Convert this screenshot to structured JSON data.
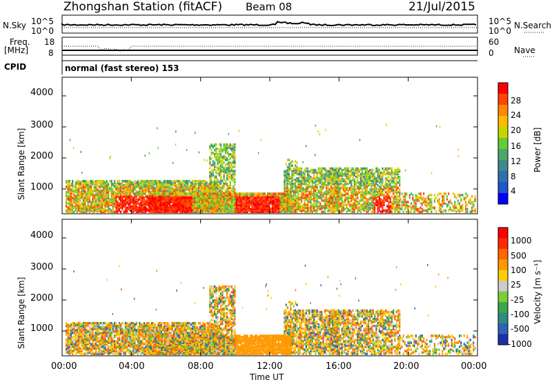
{
  "header": {
    "station": "Zhongshan Station (fitACF)",
    "beam": "Beam 08",
    "date": "21/Jul/2015"
  },
  "top_panels": {
    "nsky_label": "N.Sky",
    "nsky_ticks": [
      "10^5",
      "10^0"
    ],
    "nsearch_label": "N.Search",
    "nsearch_ticks": [
      "10^5",
      "10^0"
    ],
    "freq_label": "Freq.",
    "freq_unit": "[MHz]",
    "freq_ticks": [
      "18",
      "8"
    ],
    "nave_label": "Nave",
    "nave_ticks": [
      "60",
      "0"
    ],
    "cpid_label": "CPID",
    "cpid_text": "normal (fast stereo) 153"
  },
  "chart_data": [
    {
      "type": "heatmap",
      "name": "power-panel",
      "xlabel": "",
      "ylabel": "Slant Range [km]",
      "ylim": [
        200,
        4600
      ],
      "yticks": [
        "4000",
        "3000",
        "2000",
        "1000"
      ],
      "colorbar_label": "Power [dB]",
      "colorbar_ticks": [
        "28",
        "24",
        "20",
        "16",
        "12",
        "8",
        "4"
      ],
      "colors": [
        "#0000ff",
        "#2255cc",
        "#2e6fb0",
        "#3c8a8a",
        "#4aa86a",
        "#66cc33",
        "#c8d400",
        "#ffbb00",
        "#ff8800",
        "#ff4400",
        "#ff0000"
      ],
      "xlim": [
        0,
        24
      ]
    },
    {
      "type": "heatmap",
      "name": "velocity-panel",
      "xlabel": "Time UT",
      "ylabel": "Slant Range [km]",
      "ylim": [
        200,
        4600
      ],
      "yticks": [
        "4000",
        "3000",
        "2000",
        "1000"
      ],
      "colorbar_label": "Velocity [m s⁻¹]",
      "colorbar_ticks": [
        "1000",
        "500",
        "100",
        "25",
        "-25",
        "-100",
        "-500",
        "-1000"
      ],
      "xticks": [
        "00:00",
        "04:00",
        "08:00",
        "12:00",
        "16:00",
        "20:00",
        "00:00"
      ],
      "colors": [
        "#1a2fa8",
        "#2c62b8",
        "#2f8a80",
        "#3aa54a",
        "#7ccc3a",
        "#cccccc",
        "#ffcc00",
        "#ff9900",
        "#ff6600",
        "#ff2a00",
        "#ff0000"
      ],
      "xlim": [
        0,
        24
      ]
    }
  ]
}
